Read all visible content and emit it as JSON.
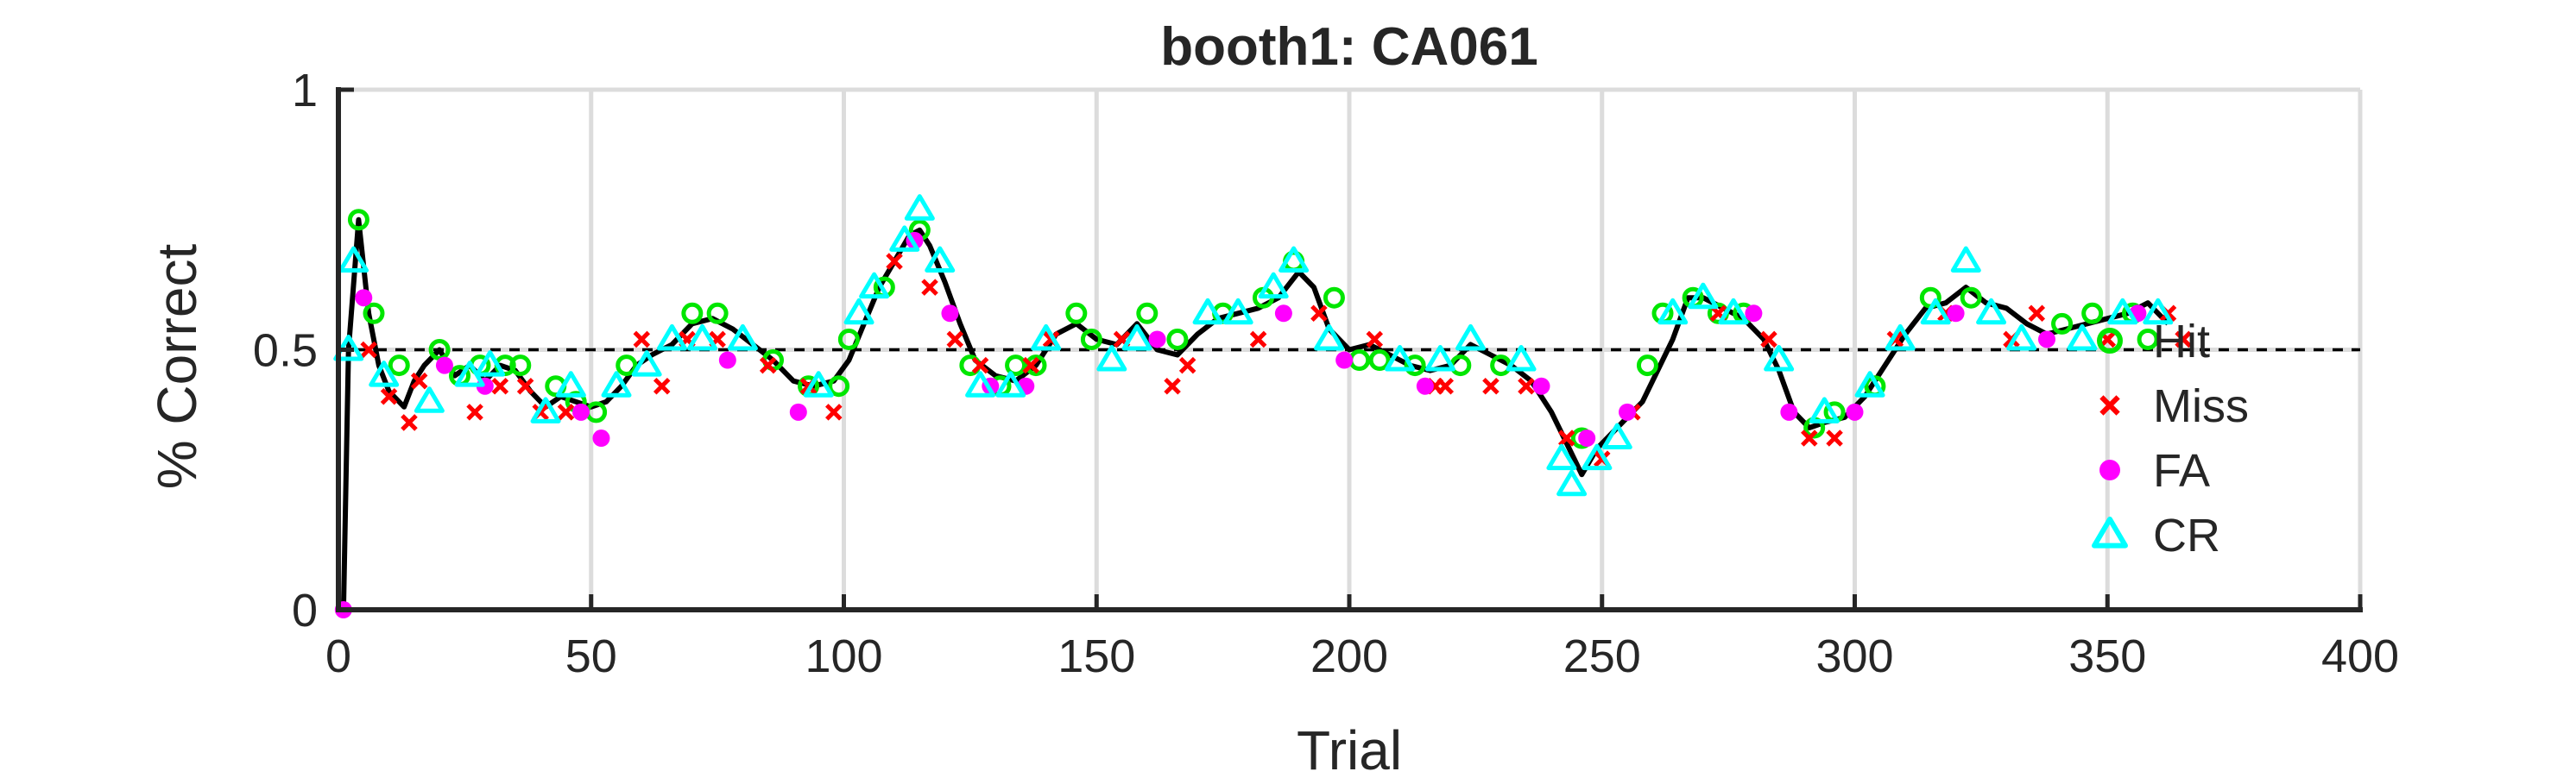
{
  "chart_data": {
    "type": "line",
    "title": "booth1: CA061",
    "xlabel": "Trial",
    "ylabel": "% Correct",
    "xlim": [
      0,
      400
    ],
    "ylim": [
      0,
      1
    ],
    "xticks": [
      0,
      50,
      100,
      150,
      200,
      250,
      300,
      350,
      400
    ],
    "xtick_labels": [
      "0",
      "50",
      "100",
      "150",
      "200",
      "250",
      "300",
      "350",
      "400"
    ],
    "yticks": [
      0,
      0.5,
      1
    ],
    "ytick_labels": [
      "0",
      "0.5",
      "1"
    ],
    "grid": true,
    "legend_position": "right",
    "reference_line": {
      "y": 0.5,
      "style": "dashed"
    },
    "colors": {
      "running": "#000000",
      "hit": "#00e600",
      "miss": "#ff0000",
      "fa": "#ff00ff",
      "cr": "#00ffff",
      "grid": "#dcdcdc",
      "axis": "#262626"
    },
    "running_x": [
      1,
      2,
      4,
      6,
      8,
      10,
      13,
      15,
      17,
      20,
      23,
      26,
      29,
      32,
      35,
      38,
      41,
      44,
      47,
      50,
      53,
      56,
      59,
      62,
      66,
      70,
      74,
      78,
      82,
      86,
      90,
      94,
      98,
      101,
      104,
      107,
      110,
      113,
      115,
      117,
      120,
      123,
      126,
      130,
      134,
      138,
      142,
      146,
      150,
      154,
      158,
      162,
      166,
      170,
      174,
      178,
      182,
      186,
      190,
      193,
      196,
      200,
      204,
      208,
      212,
      216,
      220,
      224,
      228,
      232,
      236,
      240,
      243,
      246,
      249,
      252,
      255,
      258,
      261,
      264,
      267,
      270,
      274,
      278,
      282,
      285,
      288,
      291,
      294,
      298,
      302,
      306,
      310,
      314,
      318,
      322,
      326,
      330,
      334,
      338,
      342,
      346,
      350,
      354,
      358,
      362
    ],
    "running_y": [
      0,
      0.5,
      0.75,
      0.57,
      0.47,
      0.42,
      0.39,
      0.44,
      0.47,
      0.5,
      0.45,
      0.47,
      0.44,
      0.47,
      0.46,
      0.42,
      0.39,
      0.41,
      0.4,
      0.39,
      0.4,
      0.43,
      0.47,
      0.49,
      0.51,
      0.55,
      0.56,
      0.54,
      0.51,
      0.48,
      0.44,
      0.43,
      0.44,
      0.48,
      0.55,
      0.62,
      0.67,
      0.72,
      0.73,
      0.7,
      0.63,
      0.55,
      0.48,
      0.45,
      0.44,
      0.47,
      0.53,
      0.55,
      0.52,
      0.51,
      0.55,
      0.5,
      0.49,
      0.53,
      0.56,
      0.57,
      0.58,
      0.6,
      0.65,
      0.62,
      0.54,
      0.5,
      0.51,
      0.49,
      0.47,
      0.46,
      0.47,
      0.51,
      0.49,
      0.47,
      0.44,
      0.38,
      0.32,
      0.26,
      0.31,
      0.34,
      0.37,
      0.4,
      0.46,
      0.52,
      0.6,
      0.6,
      0.58,
      0.56,
      0.52,
      0.46,
      0.38,
      0.35,
      0.36,
      0.37,
      0.41,
      0.47,
      0.53,
      0.58,
      0.59,
      0.62,
      0.59,
      0.58,
      0.55,
      0.53,
      0.54,
      0.55,
      0.56,
      0.57,
      0.59,
      0.55
    ],
    "series": [
      {
        "name": "Hit",
        "marker": "circle-open",
        "x": [
          4,
          7,
          12,
          20,
          24,
          28,
          33,
          36,
          43,
          47,
          51,
          57,
          70,
          75,
          86,
          93,
          99,
          101,
          108,
          115,
          125,
          131,
          134,
          138,
          146,
          149,
          160,
          166,
          175,
          183,
          189,
          197,
          202,
          206,
          213,
          222,
          230,
          246,
          259,
          262,
          268,
          273,
          278,
          292,
          296,
          304,
          315,
          323,
          341,
          347,
          355,
          358
        ],
        "y": [
          0.75,
          0.57,
          0.47,
          0.5,
          0.45,
          0.47,
          0.47,
          0.47,
          0.43,
          0.4,
          0.38,
          0.47,
          0.57,
          0.57,
          0.48,
          0.43,
          0.43,
          0.52,
          0.62,
          0.73,
          0.47,
          0.43,
          0.47,
          0.47,
          0.57,
          0.52,
          0.57,
          0.52,
          0.57,
          0.6,
          0.67,
          0.6,
          0.48,
          0.48,
          0.47,
          0.47,
          0.47,
          0.33,
          0.47,
          0.57,
          0.6,
          0.57,
          0.57,
          0.35,
          0.38,
          0.43,
          0.6,
          0.6,
          0.55,
          0.57,
          0.57,
          0.52
        ]
      },
      {
        "name": "Miss",
        "marker": "x",
        "x": [
          6,
          10,
          14,
          16,
          27,
          32,
          37,
          40,
          45,
          60,
          64,
          69,
          75,
          85,
          93,
          98,
          110,
          117,
          122,
          127,
          137,
          141,
          155,
          165,
          168,
          182,
          194,
          205,
          217,
          219,
          228,
          235,
          243,
          250,
          256,
          273,
          283,
          291,
          296,
          308,
          318,
          331,
          336,
          350,
          362,
          365
        ],
        "y": [
          0.5,
          0.41,
          0.36,
          0.44,
          0.38,
          0.43,
          0.43,
          0.38,
          0.38,
          0.52,
          0.43,
          0.52,
          0.52,
          0.47,
          0.43,
          0.38,
          0.67,
          0.62,
          0.52,
          0.47,
          0.47,
          0.52,
          0.52,
          0.43,
          0.47,
          0.52,
          0.57,
          0.52,
          0.43,
          0.43,
          0.43,
          0.43,
          0.33,
          0.29,
          0.38,
          0.57,
          0.52,
          0.33,
          0.33,
          0.52,
          0.57,
          0.52,
          0.57,
          0.52,
          0.57,
          0.52
        ]
      },
      {
        "name": "FA",
        "marker": "circle-filled",
        "x": [
          1,
          5,
          21,
          29,
          48,
          52,
          77,
          91,
          114,
          121,
          129,
          136,
          162,
          187,
          199,
          215,
          238,
          247,
          255,
          280,
          287,
          300,
          320,
          338,
          356
        ],
        "y": [
          0,
          0.6,
          0.47,
          0.43,
          0.38,
          0.33,
          0.48,
          0.38,
          0.71,
          0.57,
          0.43,
          0.43,
          0.52,
          0.57,
          0.48,
          0.43,
          0.43,
          0.33,
          0.38,
          0.57,
          0.38,
          0.38,
          0.57,
          0.52,
          0.57
        ]
      },
      {
        "name": "CR",
        "marker": "triangle-open",
        "x": [
          2,
          3,
          9,
          18,
          26,
          30,
          41,
          46,
          55,
          61,
          66,
          72,
          80,
          95,
          103,
          106,
          112,
          115,
          119,
          127,
          133,
          140,
          153,
          158,
          172,
          178,
          185,
          189,
          196,
          210,
          218,
          224,
          234,
          242,
          244,
          249,
          253,
          264,
          270,
          276,
          285,
          294,
          303,
          309,
          316,
          322,
          327,
          333,
          345,
          353,
          360
        ],
        "y": [
          0.5,
          0.67,
          0.45,
          0.4,
          0.45,
          0.47,
          0.38,
          0.43,
          0.43,
          0.47,
          0.52,
          0.52,
          0.52,
          0.43,
          0.57,
          0.62,
          0.71,
          0.77,
          0.67,
          0.43,
          0.43,
          0.52,
          0.48,
          0.52,
          0.57,
          0.57,
          0.62,
          0.67,
          0.52,
          0.48,
          0.48,
          0.52,
          0.48,
          0.29,
          0.24,
          0.29,
          0.33,
          0.57,
          0.6,
          0.57,
          0.48,
          0.38,
          0.43,
          0.52,
          0.57,
          0.67,
          0.57,
          0.52,
          0.52,
          0.57,
          0.57
        ]
      }
    ],
    "legend": [
      {
        "label": "Hit",
        "key": "hit",
        "marker": "circle-open"
      },
      {
        "label": "Miss",
        "key": "miss",
        "marker": "x"
      },
      {
        "label": "FA",
        "key": "fa",
        "marker": "circle-filled"
      },
      {
        "label": "CR",
        "key": "cr",
        "marker": "triangle-open"
      }
    ]
  }
}
